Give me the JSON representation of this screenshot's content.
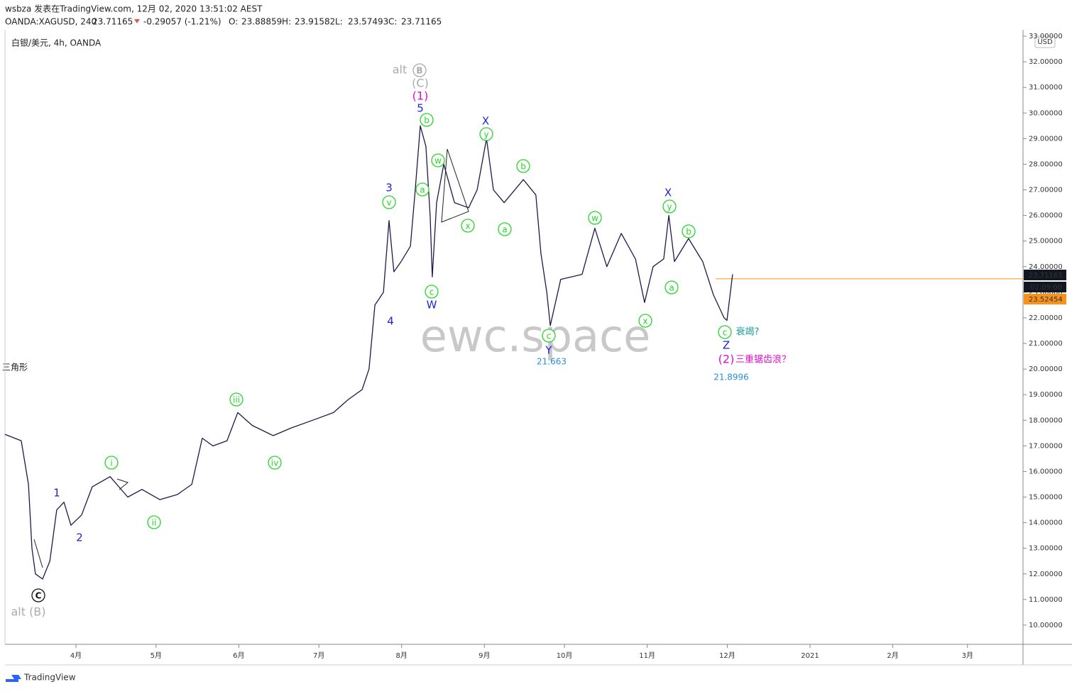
{
  "header": {
    "author_line": "wsbza 发表在TradingView.com, 12月 02, 2020 13:51:02 AEST",
    "symbol": "OANDA:XAGUSD, 240",
    "last": "23.71165",
    "change": "-0.29057 (-1.21%)",
    "ohlc": [
      {
        "label": "O:",
        "value": "23.88859"
      },
      {
        "label": "H:",
        "value": "23.91582"
      },
      {
        "label": "L:",
        "value": "23.57493"
      },
      {
        "label": "C:",
        "value": "23.71165"
      }
    ]
  },
  "chart_data": {
    "type": "line",
    "title": "白银/美元, 4h, OANDA",
    "currency": "USD",
    "x": [
      64.4,
      70.5,
      73.2,
      74.5,
      75.8,
      78.5,
      81.2,
      83.8,
      86.5,
      89.1,
      93.1,
      97.1,
      103.8,
      110.4,
      115.7,
      122.4,
      129.0,
      134.4,
      138.3,
      142.3,
      147.6,
      151.6,
      157.0,
      164.9,
      171.6,
      179.6,
      187.5,
      192.9,
      198.2,
      200.8,
      203.0,
      206.2,
      208.3,
      210.1,
      212.8,
      216.3,
      218.1,
      220.0,
      222.1,
      223.7,
      224.5,
      226.1,
      228.8,
      232.8,
      238.1,
      241.3,
      244.8,
      247.4,
      251.4,
      258.6,
      263.3,
      265.2,
      267.4,
      268.7,
      272.6,
      280.6,
      285.4,
      289.9,
      295.3,
      300.6,
      304.0,
      307.2,
      311.2,
      313.1,
      315.2,
      320.5,
      325.8,
      329.8,
      333.8,
      334.9,
      337.0
    ],
    "series": [
      {
        "name": "XAGUSD",
        "color": "#1c1a4a",
        "values": [
          17.45,
          17.2,
          15.5,
          13.0,
          12.0,
          11.8,
          12.5,
          14.5,
          14.8,
          13.9,
          14.3,
          15.4,
          15.8,
          15.0,
          15.3,
          14.9,
          15.1,
          15.5,
          17.3,
          17.0,
          17.2,
          18.3,
          17.8,
          17.4,
          17.7,
          18.0,
          18.3,
          18.8,
          19.2,
          20.0,
          22.5,
          23.0,
          25.8,
          23.8,
          24.2,
          24.8,
          27.0,
          29.5,
          28.7,
          26.0,
          23.6,
          26.5,
          28.0,
          26.5,
          26.3,
          27.0,
          29.0,
          27.0,
          26.5,
          27.4,
          26.8,
          24.5,
          23.0,
          21.7,
          23.5,
          23.7,
          25.5,
          24.0,
          25.3,
          24.3,
          22.6,
          24.0,
          24.3,
          26.0,
          24.2,
          25.1,
          24.2,
          22.9,
          22.0,
          21.9,
          23.7
        ]
      }
    ],
    "xlim": [
      64.4,
      445.8
    ],
    "ylim": [
      9.25,
      33.25
    ],
    "xticks": [
      {
        "value": 91,
        "label": "4月"
      },
      {
        "value": 121,
        "label": "5月"
      },
      {
        "value": 152,
        "label": "6月"
      },
      {
        "value": 182,
        "label": "7月"
      },
      {
        "value": 213,
        "label": "8月"
      },
      {
        "value": 244,
        "label": "9月"
      },
      {
        "value": 274,
        "label": "10月"
      },
      {
        "value": 305,
        "label": "11月"
      },
      {
        "value": 335,
        "label": "12月"
      },
      {
        "value": 366,
        "label": "2021"
      },
      {
        "value": 397,
        "label": "2月"
      },
      {
        "value": 425,
        "label": "3月"
      }
    ],
    "yticks": [
      {
        "value": 10,
        "label": "10.00000"
      },
      {
        "value": 11,
        "label": "11.00000"
      },
      {
        "value": 12,
        "label": "12.00000"
      },
      {
        "value": 13,
        "label": "13.00000"
      },
      {
        "value": 14,
        "label": "14.00000"
      },
      {
        "value": 15,
        "label": "15.00000"
      },
      {
        "value": 16,
        "label": "16.00000"
      },
      {
        "value": 17,
        "label": "17.00000"
      },
      {
        "value": 18,
        "label": "18.00000"
      },
      {
        "value": 19,
        "label": "19.00000"
      },
      {
        "value": 20,
        "label": "20.00000"
      },
      {
        "value": 21,
        "label": "21.00000"
      },
      {
        "value": 22,
        "label": "22.00000"
      },
      {
        "value": 23,
        "label": "23.00000"
      },
      {
        "value": 24,
        "label": "24.00000"
      },
      {
        "value": 25,
        "label": "25.00000"
      },
      {
        "value": 26,
        "label": "26.00000"
      },
      {
        "value": 27,
        "label": "27.00000"
      },
      {
        "value": 28,
        "label": "28.00000"
      },
      {
        "value": 29,
        "label": "29.00000"
      },
      {
        "value": 30,
        "label": "30.00000"
      },
      {
        "value": 31,
        "label": "31.00000"
      },
      {
        "value": 32,
        "label": "32.00000"
      },
      {
        "value": 33,
        "label": "33.00000"
      }
    ],
    "last_price": {
      "value": 23.71165,
      "label": "23.71165"
    },
    "countdown": "02:09:00",
    "price_line": {
      "value": 23.52454,
      "label": "23.52454",
      "color": "#f7931a"
    },
    "watermark": "ewc.space",
    "drawing_label": "三角形",
    "annotations": [
      "b",
      "w",
      "a",
      "v",
      "x",
      "y",
      "b",
      "a",
      "c",
      "w",
      "y",
      "b",
      "a",
      "x",
      "c",
      "c",
      "iii",
      "i",
      "iv",
      "ii",
      "5",
      "3",
      "4",
      "1",
      "2",
      "W",
      "X",
      "X",
      "Y",
      "Z",
      "(1)",
      "(2)",
      "三重锯齿浪？",
      "alt",
      "B",
      "(C)",
      "alt (B)",
      "C",
      "衰竭?",
      "21.663",
      "21.8996"
    ]
  },
  "footer": {
    "brand": "TradingView"
  }
}
